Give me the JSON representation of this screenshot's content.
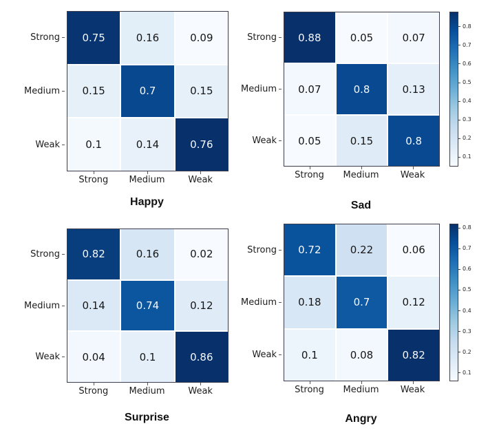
{
  "figure": {
    "background": "#ffffff",
    "spine_color": "#3b3b4b",
    "grid_line_color": "#ffffff",
    "annot_light_color": "#f7f8fb",
    "annot_dark_color": "#161616",
    "label_color": "#1c1c1c",
    "colormap_anchors": [
      "#f7fbff",
      "#deebf7",
      "#c6dbef",
      "#9ecae1",
      "#6baed6",
      "#4292c6",
      "#2171b5",
      "#08519c",
      "#08306b"
    ]
  },
  "chart_data": [
    {
      "type": "heatmap",
      "title": "Happy",
      "rows": [
        "Strong",
        "Medium",
        "Weak"
      ],
      "cols": [
        "Strong",
        "Medium",
        "Weak"
      ],
      "values": [
        [
          0.75,
          0.16,
          0.09
        ],
        [
          0.15,
          0.7,
          0.15
        ],
        [
          0.1,
          0.14,
          0.76
        ]
      ],
      "colormap": "Blues",
      "colorbar": false
    },
    {
      "type": "heatmap",
      "title": "Sad",
      "rows": [
        "Strong",
        "Medium",
        "Weak"
      ],
      "cols": [
        "Strong",
        "Medium",
        "Weak"
      ],
      "values": [
        [
          0.88,
          0.05,
          0.07
        ],
        [
          0.07,
          0.8,
          0.13
        ],
        [
          0.05,
          0.15,
          0.8
        ]
      ],
      "colormap": "Blues",
      "colorbar": true,
      "colorbar_ticks": [
        0.8,
        0.7,
        0.6,
        0.5,
        0.4,
        0.3,
        0.2,
        0.1
      ]
    },
    {
      "type": "heatmap",
      "title": "Surprise",
      "rows": [
        "Strong",
        "Medium",
        "Weak"
      ],
      "cols": [
        "Strong",
        "Medium",
        "Weak"
      ],
      "values": [
        [
          0.82,
          0.16,
          0.02
        ],
        [
          0.14,
          0.74,
          0.12
        ],
        [
          0.04,
          0.1,
          0.86
        ]
      ],
      "colormap": "Blues",
      "colorbar": false
    },
    {
      "type": "heatmap",
      "title": "Angry",
      "rows": [
        "Strong",
        "Medium",
        "Weak"
      ],
      "cols": [
        "Strong",
        "Medium",
        "Weak"
      ],
      "values": [
        [
          0.72,
          0.22,
          0.06
        ],
        [
          0.18,
          0.7,
          0.12
        ],
        [
          0.1,
          0.08,
          0.82
        ]
      ],
      "colormap": "Blues",
      "colorbar": true,
      "colorbar_ticks": [
        0.8,
        0.7,
        0.6,
        0.5,
        0.4,
        0.3,
        0.2,
        0.1
      ]
    }
  ]
}
